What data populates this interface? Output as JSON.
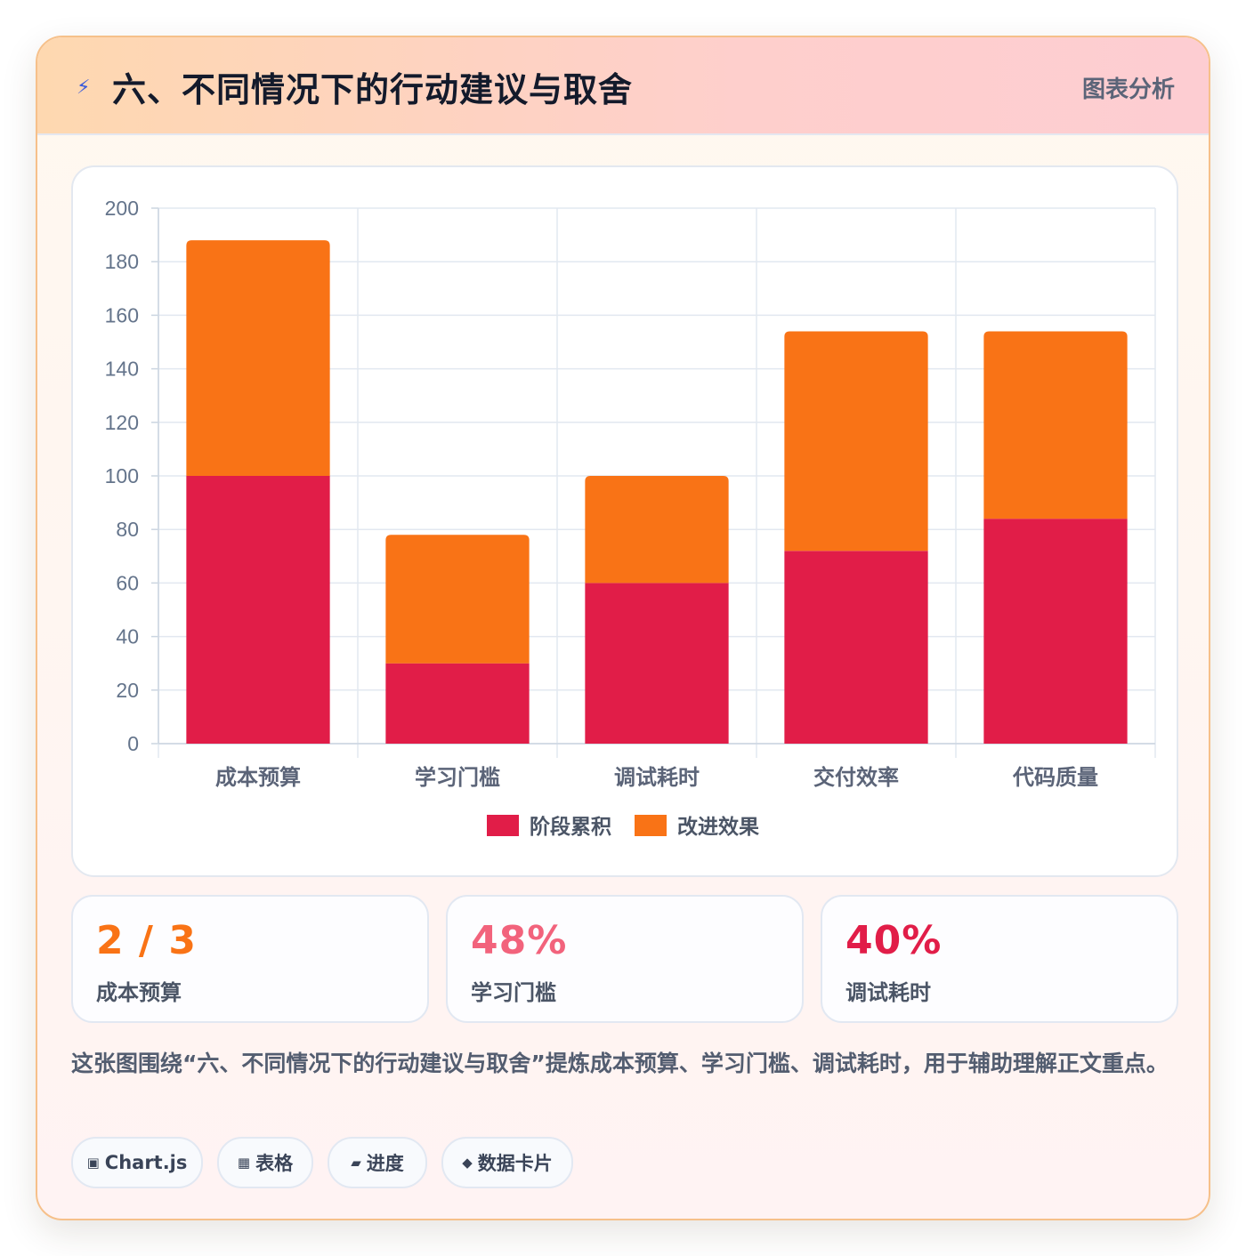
{
  "header": {
    "icon": "lightning-icon",
    "title": "六、不同情况下的行动建议与取舍",
    "tag": "图表分析"
  },
  "chart_data": {
    "type": "bar",
    "stacked": true,
    "categories": [
      "成本预算",
      "学习门槛",
      "调试耗时",
      "交付效率",
      "代码质量"
    ],
    "series": [
      {
        "name": "阶段累积",
        "values": [
          100,
          30,
          60,
          72,
          84
        ],
        "color": "#e11d48"
      },
      {
        "name": "改进效果",
        "values": [
          88,
          48,
          40,
          82,
          70
        ],
        "color": "#f97316"
      }
    ],
    "ylim": [
      0,
      200
    ],
    "yticks": [
      0,
      20,
      40,
      60,
      80,
      100,
      120,
      140,
      160,
      180,
      200
    ],
    "grid": true,
    "legend": "bottom"
  },
  "stats": [
    {
      "value": "2 / 3",
      "label": "成本预算",
      "color": "#f97316"
    },
    {
      "value": "48%",
      "label": "学习门槛",
      "color": "#f2637c"
    },
    {
      "value": "40%",
      "label": "调试耗时",
      "color": "#e11d48"
    }
  ],
  "description": "这张图围绕“六、不同情况下的行动建议与取舍”提炼成本预算、学习门槛、调试耗时，用于辅助理解正文重点。",
  "chips": [
    {
      "icon": "▣",
      "label": "Chart.js"
    },
    {
      "icon": "▦",
      "label": "表格"
    },
    {
      "icon": "▰",
      "label": "进度"
    },
    {
      "icon": "◆",
      "label": "数据卡片"
    }
  ]
}
